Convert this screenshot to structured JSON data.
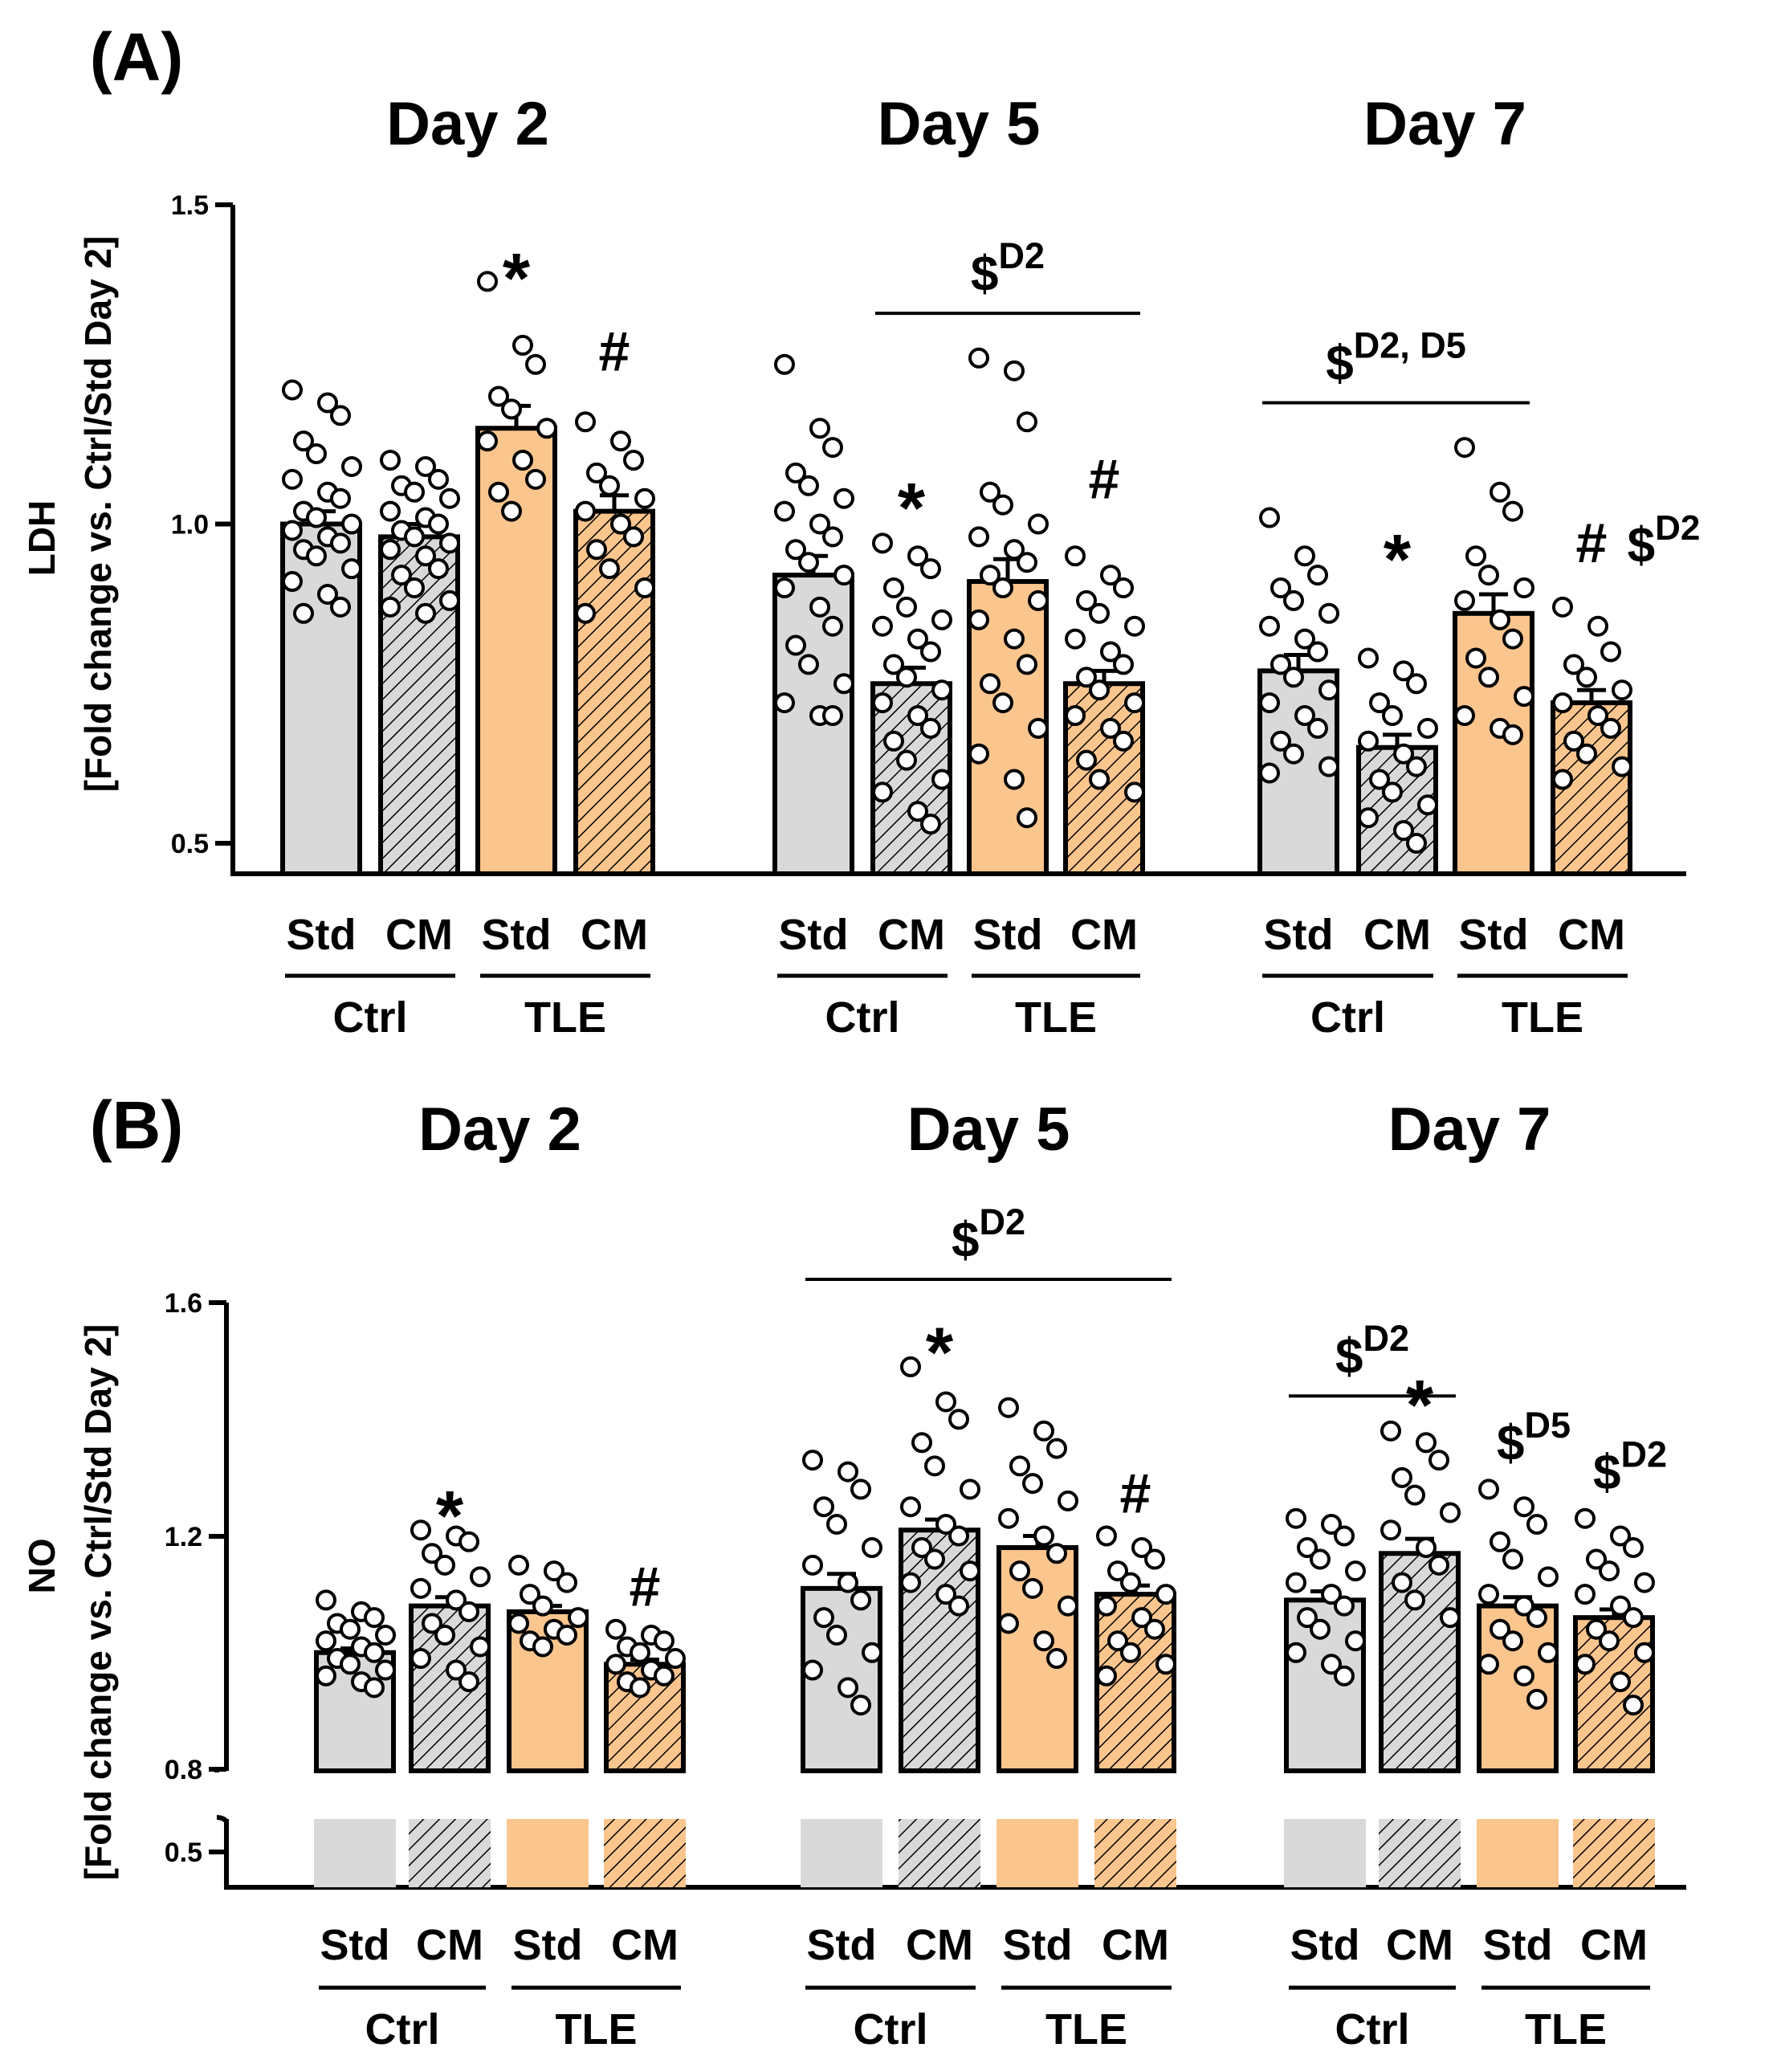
{
  "figure": {
    "panels": [
      "(A)",
      "(B)"
    ],
    "day_titles": [
      "Day 2",
      "Day 5",
      "Day 7"
    ],
    "group_labels": [
      "Std",
      "CM",
      "Std",
      "CM"
    ],
    "condition_labels": [
      "Ctrl",
      "TLE"
    ],
    "colors": {
      "ctrl": "#d9d9d9",
      "tle": "#fbc58e",
      "axis": "#000000",
      "hatch": "#000000"
    }
  },
  "chart_data": [
    {
      "type": "bar",
      "panel": "(A)",
      "ylabel": "LDH",
      "ylabel2": "[Fold change vs. Ctrl/Std Day 2]",
      "ylim": [
        0.45,
        1.5
      ],
      "yticks": [
        0.5,
        1.0,
        1.5
      ],
      "ytick_labels": [
        "0.5",
        "1.0",
        "1.5"
      ],
      "categories": [
        "Ctrl Std",
        "Ctrl CM",
        "TLE Std",
        "TLE CM"
      ],
      "days": [
        {
          "title": "Day 2",
          "means": [
            1.0,
            0.98,
            1.15,
            1.02
          ],
          "sems": [
            0.02,
            0.02,
            0.035,
            0.025
          ],
          "points": [
            [
              1.21,
              1.19,
              1.17,
              1.13,
              1.11,
              1.09,
              1.07,
              1.05,
              1.04,
              1.02,
              1.01,
              1.0,
              0.99,
              0.98,
              0.97,
              0.96,
              0.95,
              0.93,
              0.91,
              0.89,
              0.87,
              0.86
            ],
            [
              1.1,
              1.09,
              1.07,
              1.06,
              1.05,
              1.04,
              1.02,
              1.01,
              1.0,
              0.99,
              0.98,
              0.97,
              0.96,
              0.95,
              0.93,
              0.92,
              0.9,
              0.88,
              0.87,
              0.86
            ],
            [
              1.38,
              1.28,
              1.25,
              1.2,
              1.18,
              1.15,
              1.13,
              1.1,
              1.07,
              1.05,
              1.02
            ],
            [
              1.16,
              1.13,
              1.1,
              1.08,
              1.06,
              1.04,
              1.02,
              1.0,
              0.98,
              0.96,
              0.93,
              0.9,
              0.86
            ]
          ],
          "annotations": [
            {
              "bar": 2,
              "text": "*",
              "value": 1.39
            },
            {
              "bar": 3,
              "text": "#",
              "value": 1.24
            }
          ],
          "brackets": []
        },
        {
          "title": "Day 5",
          "means": [
            0.92,
            0.75,
            0.91,
            0.75
          ],
          "sems": [
            0.03,
            0.025,
            0.035,
            0.02
          ],
          "points": [
            [
              1.25,
              1.15,
              1.12,
              1.08,
              1.06,
              1.04,
              1.02,
              1.0,
              0.98,
              0.96,
              0.94,
              0.92,
              0.9,
              0.87,
              0.84,
              0.81,
              0.78,
              0.75,
              0.72,
              0.7,
              0.7
            ],
            [
              0.97,
              0.95,
              0.93,
              0.9,
              0.87,
              0.85,
              0.84,
              0.82,
              0.8,
              0.78,
              0.76,
              0.74,
              0.72,
              0.7,
              0.68,
              0.66,
              0.63,
              0.6,
              0.58,
              0.55,
              0.53
            ],
            [
              1.26,
              1.24,
              1.16,
              1.05,
              1.03,
              1.0,
              0.98,
              0.96,
              0.94,
              0.92,
              0.9,
              0.88,
              0.85,
              0.82,
              0.78,
              0.75,
              0.72,
              0.68,
              0.64,
              0.6,
              0.54
            ],
            [
              0.95,
              0.92,
              0.9,
              0.88,
              0.86,
              0.84,
              0.82,
              0.8,
              0.78,
              0.76,
              0.74,
              0.72,
              0.7,
              0.68,
              0.66,
              0.63,
              0.6,
              0.58
            ]
          ],
          "annotations": [
            {
              "bar": 1,
              "text": "*",
              "value": 1.03
            },
            {
              "bar": 3,
              "text": "#",
              "value": 1.04
            }
          ],
          "brackets": [
            {
              "from": 1,
              "to": 3,
              "value": 1.33,
              "text": "$",
              "sup": "D2"
            }
          ]
        },
        {
          "title": "Day 7",
          "means": [
            0.77,
            0.65,
            0.86,
            0.72
          ],
          "sems": [
            0.025,
            0.02,
            0.03,
            0.02
          ],
          "points": [
            [
              1.01,
              0.95,
              0.92,
              0.9,
              0.88,
              0.86,
              0.84,
              0.82,
              0.8,
              0.78,
              0.76,
              0.74,
              0.72,
              0.7,
              0.68,
              0.66,
              0.64,
              0.62,
              0.61
            ],
            [
              0.79,
              0.77,
              0.75,
              0.72,
              0.7,
              0.68,
              0.66,
              0.64,
              0.62,
              0.6,
              0.58,
              0.56,
              0.54,
              0.52,
              0.5
            ],
            [
              1.12,
              1.05,
              1.02,
              0.95,
              0.92,
              0.9,
              0.88,
              0.85,
              0.82,
              0.79,
              0.76,
              0.73,
              0.7,
              0.68,
              0.67
            ],
            [
              0.87,
              0.84,
              0.8,
              0.78,
              0.76,
              0.74,
              0.72,
              0.7,
              0.68,
              0.66,
              0.64,
              0.62,
              0.6
            ]
          ],
          "annotations": [
            {
              "bar": 1,
              "text": "*",
              "value": 0.95
            },
            {
              "bar": 3,
              "text": "#",
              "value": 0.94,
              "extra_text": "$",
              "extra_sup": "D2"
            }
          ],
          "brackets": [
            {
              "from": 0,
              "to": 2,
              "value": 1.19,
              "text": "$",
              "sup": "D2, D5"
            }
          ]
        }
      ]
    },
    {
      "type": "bar",
      "panel": "(B)",
      "ylabel": "NO",
      "ylabel2": "[Fold change vs. Ctrl/Std Day 2]",
      "axis_break": true,
      "ylim_upper": [
        0.8,
        1.6
      ],
      "ylim_lower": [
        0.5,
        0.5
      ],
      "yticks": [
        0.5,
        0.8,
        1.2,
        1.6
      ],
      "ytick_labels": [
        "0.5",
        "0.8",
        "1.2",
        "1.6"
      ],
      "categories": [
        "Ctrl Std",
        "Ctrl CM",
        "TLE Std",
        "TLE CM"
      ],
      "days": [
        {
          "title": "Day 2",
          "means": [
            1.0,
            1.08,
            1.07,
            0.98
          ],
          "sems": [
            0.007,
            0.015,
            0.01,
            0.008
          ],
          "points": [
            [
              1.09,
              1.07,
              1.06,
              1.05,
              1.04,
              1.03,
              1.02,
              1.01,
              1.0,
              0.99,
              0.98,
              0.97,
              0.96,
              0.95,
              0.94
            ],
            [
              1.21,
              1.2,
              1.19,
              1.17,
              1.15,
              1.13,
              1.11,
              1.09,
              1.07,
              1.05,
              1.03,
              1.01,
              0.99,
              0.97,
              0.95
            ],
            [
              1.15,
              1.14,
              1.12,
              1.1,
              1.08,
              1.06,
              1.05,
              1.04,
              1.03,
              1.02,
              1.01
            ],
            [
              1.04,
              1.03,
              1.02,
              1.01,
              1.0,
              0.99,
              0.98,
              0.97,
              0.96,
              0.95,
              0.94
            ]
          ],
          "annotations": [
            {
              "bar": 1,
              "text": "*",
              "value": 1.24
            },
            {
              "bar": 3,
              "text": "#",
              "value": 1.08
            }
          ],
          "brackets": []
        },
        {
          "title": "Day 5",
          "means": [
            1.11,
            1.21,
            1.18,
            1.1
          ],
          "sems": [
            0.025,
            0.018,
            0.02,
            0.015
          ],
          "points": [
            [
              1.33,
              1.31,
              1.28,
              1.25,
              1.22,
              1.18,
              1.15,
              1.12,
              1.09,
              1.06,
              1.03,
              1.0,
              0.97,
              0.94,
              0.91
            ],
            [
              1.49,
              1.43,
              1.4,
              1.36,
              1.32,
              1.28,
              1.25,
              1.22,
              1.2,
              1.18,
              1.16,
              1.14,
              1.12,
              1.1,
              1.08
            ],
            [
              1.42,
              1.38,
              1.35,
              1.32,
              1.29,
              1.26,
              1.23,
              1.2,
              1.17,
              1.14,
              1.11,
              1.08,
              1.05,
              1.02,
              0.99
            ],
            [
              1.2,
              1.18,
              1.16,
              1.14,
              1.12,
              1.1,
              1.08,
              1.06,
              1.04,
              1.02,
              1.0,
              0.98,
              0.96
            ]
          ],
          "annotations": [
            {
              "bar": 1,
              "text": "*",
              "value": 1.52
            },
            {
              "bar": 3,
              "text": "#",
              "value": 1.24
            }
          ],
          "brackets": [
            {
              "from": 0,
              "to": 3,
              "value": 1.64,
              "text": "$",
              "sup": "D2"
            }
          ]
        },
        {
          "title": "Day 7",
          "means": [
            1.09,
            1.17,
            1.08,
            1.06
          ],
          "sems": [
            0.015,
            0.025,
            0.015,
            0.014
          ],
          "points": [
            [
              1.23,
              1.22,
              1.2,
              1.18,
              1.16,
              1.14,
              1.12,
              1.1,
              1.08,
              1.06,
              1.04,
              1.02,
              1.0,
              0.98,
              0.96
            ],
            [
              1.38,
              1.36,
              1.33,
              1.3,
              1.27,
              1.24,
              1.21,
              1.18,
              1.15,
              1.12,
              1.09,
              1.06
            ],
            [
              1.28,
              1.25,
              1.22,
              1.19,
              1.16,
              1.13,
              1.1,
              1.08,
              1.06,
              1.04,
              1.02,
              1.0,
              0.98,
              0.96,
              0.92
            ],
            [
              1.23,
              1.2,
              1.18,
              1.16,
              1.14,
              1.12,
              1.1,
              1.08,
              1.06,
              1.04,
              1.02,
              1.0,
              0.98,
              0.95,
              0.91
            ]
          ],
          "annotations": [
            {
              "bar": 1,
              "text": "*",
              "value": 1.43
            },
            {
              "bar": 2,
              "text": "$",
              "sup": "D5",
              "value": 1.33
            },
            {
              "bar": 3,
              "text": "$",
              "sup": "D2",
              "value": 1.28
            }
          ],
          "brackets": [
            {
              "from": 0,
              "to": 1,
              "value": 1.44,
              "text": "$",
              "sup": "D2"
            }
          ]
        }
      ]
    }
  ]
}
